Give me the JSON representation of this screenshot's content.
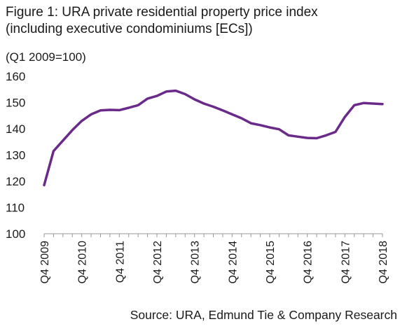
{
  "figure": {
    "title_line1": "Figure 1: URA private residential property price index",
    "title_line2": "(including executive condominiums [ECs])",
    "unit_label": "(Q1 2009=100)",
    "source": "Source: URA, Edmund Tie & Company Research"
  },
  "chart_data": {
    "type": "line",
    "title": "Figure 1: URA private residential property price index (including executive condominiums [ECs])",
    "ylabel": "(Q1 2009=100)",
    "xlabel": "",
    "ylim": [
      100,
      160
    ],
    "yticks": [
      100,
      110,
      120,
      130,
      140,
      150,
      160
    ],
    "x": [
      "Q4 2009",
      "Q1 2010",
      "Q2 2010",
      "Q3 2010",
      "Q4 2010",
      "Q1 2011",
      "Q2 2011",
      "Q3 2011",
      "Q4 2011",
      "Q1 2012",
      "Q2 2012",
      "Q3 2012",
      "Q4 2012",
      "Q1 2013",
      "Q2 2013",
      "Q3 2013",
      "Q4 2013",
      "Q1 2014",
      "Q2 2014",
      "Q3 2014",
      "Q4 2014",
      "Q1 2015",
      "Q2 2015",
      "Q3 2015",
      "Q4 2015",
      "Q1 2016",
      "Q2 2016",
      "Q3 2016",
      "Q4 2016",
      "Q1 2017",
      "Q2 2017",
      "Q3 2017",
      "Q4 2017",
      "Q1 2018",
      "Q2 2018",
      "Q3 2018",
      "Q4 2018"
    ],
    "xtick_labels": [
      "Q4 2009",
      "Q4 2010",
      "Q4 2011",
      "Q4 2012",
      "Q4 2013",
      "Q4 2014",
      "Q4 2015",
      "Q4 2016",
      "Q4 2017",
      "Q4 2018"
    ],
    "series": [
      {
        "color": "#6a2a8a",
        "values": [
          118.5,
          131.5,
          135.5,
          139.5,
          143,
          145.5,
          147,
          147.2,
          147.1,
          148,
          149,
          151.5,
          152.5,
          154.2,
          154.5,
          153.2,
          151.2,
          149.6,
          148.4,
          147,
          145.5,
          144,
          142.1,
          141.4,
          140.5,
          139.8,
          137.5,
          137,
          136.5,
          136.4,
          137.5,
          138.8,
          144.5,
          149,
          149.8,
          149.6,
          149.4
        ]
      }
    ],
    "grid": false,
    "legend": "none"
  }
}
